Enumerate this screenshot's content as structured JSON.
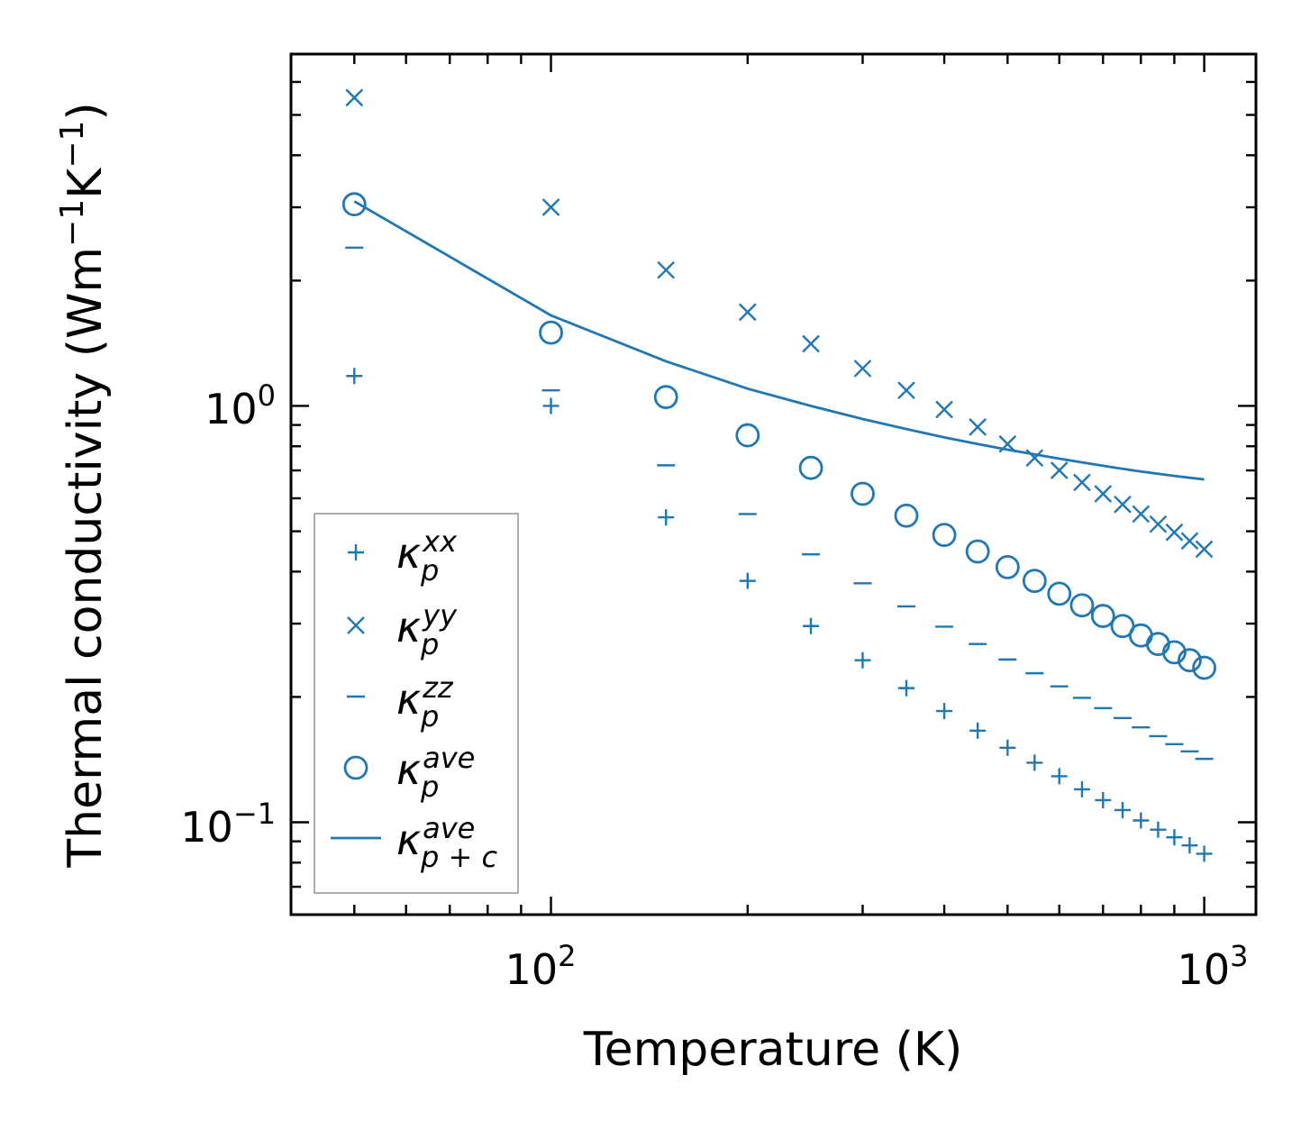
{
  "chart_data": {
    "type": "scatter",
    "xscale": "log",
    "yscale": "log",
    "xlim": [
      40,
      1200
    ],
    "ylim": [
      0.06,
      7.0
    ],
    "xlabel": "Temperature (K)",
    "ylabel": "Thermal conductivity (Wm⁻¹K⁻¹)",
    "ylabel_base": "Thermal conductivity (Wm",
    "ylabel_exp1": "−1",
    "ylabel_mid": "K",
    "ylabel_exp2": "−1",
    "ylabel_end": ")",
    "x_ticks": [
      {
        "base": "10",
        "exp": "2",
        "value": 100
      },
      {
        "base": "10",
        "exp": "3",
        "value": 1000
      }
    ],
    "y_ticks": [
      {
        "base": "10",
        "exp": "0",
        "value": 1
      },
      {
        "base": "10",
        "exp": "−1",
        "value": 0.1
      }
    ],
    "color": "#1f77b4",
    "x": [
      50,
      100,
      150,
      200,
      250,
      300,
      350,
      400,
      450,
      500,
      550,
      600,
      650,
      700,
      750,
      800,
      850,
      900,
      950,
      1000
    ],
    "series": [
      {
        "name": "kxx",
        "marker": "plus",
        "legend_main": "κ",
        "legend_sub": "p",
        "legend_sup": "xx",
        "values": [
          1.18,
          1.0,
          0.54,
          0.38,
          0.296,
          0.245,
          0.21,
          0.185,
          0.166,
          0.151,
          0.139,
          0.129,
          0.12,
          0.113,
          0.107,
          0.101,
          0.096,
          0.092,
          0.088,
          0.084
        ]
      },
      {
        "name": "kyy",
        "marker": "x",
        "legend_main": "κ",
        "legend_sub": "p",
        "legend_sup": "yy",
        "values": [
          5.5,
          3.0,
          2.12,
          1.68,
          1.41,
          1.23,
          1.09,
          0.98,
          0.89,
          0.81,
          0.75,
          0.7,
          0.655,
          0.615,
          0.58,
          0.55,
          0.52,
          0.497,
          0.474,
          0.453
        ]
      },
      {
        "name": "kzz",
        "marker": "dash",
        "legend_main": "κ",
        "legend_sub": "p",
        "legend_sup": "zz",
        "values": [
          2.4,
          1.09,
          0.72,
          0.55,
          0.44,
          0.375,
          0.33,
          0.295,
          0.268,
          0.246,
          0.228,
          0.212,
          0.199,
          0.188,
          0.178,
          0.169,
          0.161,
          0.154,
          0.148,
          0.142
        ]
      },
      {
        "name": "kave",
        "marker": "circle",
        "legend_main": "κ",
        "legend_sub": "p",
        "legend_sup": "ave",
        "values": [
          3.05,
          1.5,
          1.05,
          0.85,
          0.71,
          0.615,
          0.545,
          0.49,
          0.447,
          0.41,
          0.38,
          0.354,
          0.332,
          0.313,
          0.296,
          0.281,
          0.268,
          0.256,
          0.245,
          0.235
        ]
      },
      {
        "name": "kpc_ave",
        "marker": "line",
        "legend_main": "κ",
        "legend_sub": "p + c",
        "legend_sup": "ave",
        "values": [
          3.1,
          1.65,
          1.28,
          1.1,
          1.0,
          0.93,
          0.88,
          0.84,
          0.81,
          0.785,
          0.765,
          0.747,
          0.732,
          0.718,
          0.706,
          0.696,
          0.687,
          0.679,
          0.672,
          0.666
        ]
      }
    ]
  }
}
